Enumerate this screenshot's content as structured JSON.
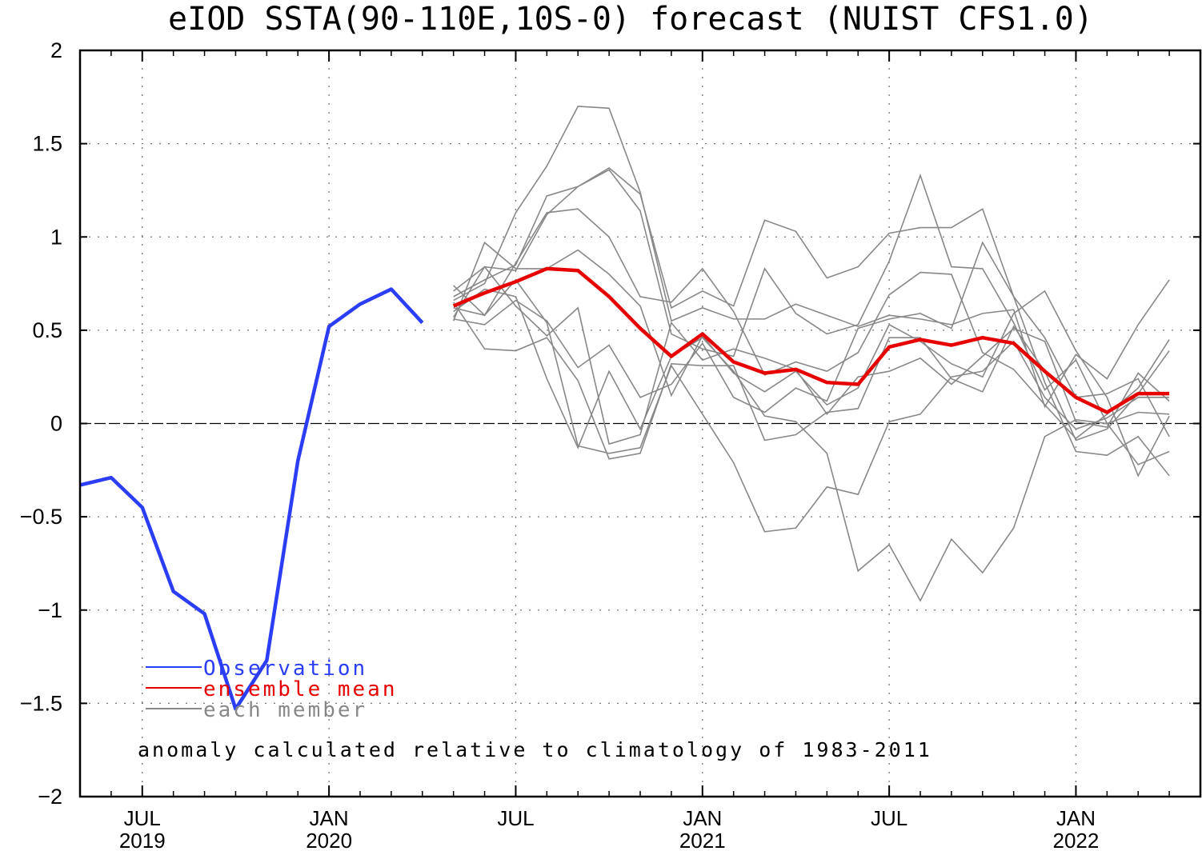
{
  "chart_data": {
    "type": "line",
    "title": "eIOD SSTA(90-110E,10S-0) forecast (NUIST CFS1.0)",
    "xlabel": "",
    "ylabel": "",
    "ylim": [
      -2,
      2
    ],
    "yticks": [
      "2",
      "1.5",
      "1",
      "0.5",
      "0",
      "-0.5",
      "-1",
      "-1.5",
      "-2"
    ],
    "xlim": [
      "2019-05",
      "2022-05"
    ],
    "xticks": [
      {
        "x": "2019-07",
        "month": "JUL",
        "year": "2019"
      },
      {
        "x": "2020-01",
        "month": "JAN",
        "year": "2020"
      },
      {
        "x": "2020-07",
        "month": "JUL",
        "year": ""
      },
      {
        "x": "2021-01",
        "month": "JAN",
        "year": "2021"
      },
      {
        "x": "2021-07",
        "month": "JUL",
        "year": ""
      },
      {
        "x": "2022-01",
        "month": "JAN",
        "year": "2022"
      }
    ],
    "grid": true,
    "zero_line": true,
    "legend": {
      "position": "bottom-left",
      "entries": [
        {
          "name": "Observation",
          "color": "#2b3df5"
        },
        {
          "name": "ensemble mean",
          "color": "#e60000"
        },
        {
          "name": "each member",
          "color": "#888888"
        }
      ]
    },
    "annotation": "anomaly calculated relative to climatology of 1983-2011",
    "series": [
      {
        "name": "Observation",
        "color": "#2b3df5",
        "x": [
          "2019-05",
          "2019-06",
          "2019-07",
          "2019-08",
          "2019-09",
          "2019-10",
          "2019-11",
          "2019-12",
          "2020-01",
          "2020-02",
          "2020-03",
          "2020-04"
        ],
        "values": [
          -0.33,
          -0.29,
          -0.45,
          -0.9,
          -1.02,
          -1.53,
          -1.27,
          -0.2,
          0.52,
          0.64,
          0.72,
          0.54
        ]
      },
      {
        "name": "ensemble mean",
        "color": "#e60000",
        "x": [
          "2020-05",
          "2020-06",
          "2020-07",
          "2020-08",
          "2020-09",
          "2020-10",
          "2020-11",
          "2020-12",
          "2021-01",
          "2021-02",
          "2021-03",
          "2021-04",
          "2021-05",
          "2021-06",
          "2021-07",
          "2021-08",
          "2021-09",
          "2021-10",
          "2021-11",
          "2021-12",
          "2022-01",
          "2022-02",
          "2022-03",
          "2022-04"
        ],
        "values": [
          0.63,
          0.7,
          0.76,
          0.83,
          0.82,
          0.68,
          0.51,
          0.36,
          0.48,
          0.33,
          0.27,
          0.29,
          0.22,
          0.21,
          0.41,
          0.45,
          0.42,
          0.46,
          0.43,
          0.28,
          0.14,
          0.06,
          0.16,
          0.16
        ]
      }
    ],
    "members": {
      "color": "#888888",
      "x": [
        "2020-05",
        "2020-06",
        "2020-07",
        "2020-08",
        "2020-09",
        "2020-10",
        "2020-11",
        "2020-12",
        "2021-01",
        "2021-02",
        "2021-03",
        "2021-04",
        "2021-05",
        "2021-06",
        "2021-07",
        "2021-08",
        "2021-09",
        "2021-10",
        "2021-11",
        "2021-12",
        "2022-01",
        "2022-02",
        "2022-03",
        "2022-04"
      ],
      "lines": [
        [
          0.66,
          0.75,
          1.13,
          1.38,
          1.7,
          1.69,
          1.24,
          0.55,
          0.62,
          0.56,
          0.56,
          0.64,
          0.58,
          0.52,
          0.58,
          0.56,
          0.53,
          0.59,
          0.61,
          0.09,
          0.37,
          0.24,
          0.53,
          0.77
        ],
        [
          0.68,
          0.77,
          0.85,
          1.22,
          1.27,
          1.37,
          1.23,
          0.62,
          0.71,
          0.63,
          1.09,
          1.03,
          0.78,
          0.84,
          1.02,
          1.05,
          1.05,
          1.15,
          0.68,
          0.46,
          0.14,
          0.16,
          0.24,
          -0.07
        ],
        [
          0.57,
          0.84,
          0.82,
          1.12,
          1.27,
          1.36,
          1.14,
          0.48,
          0.4,
          0.36,
          0.83,
          0.59,
          0.48,
          0.53,
          0.87,
          1.33,
          0.84,
          0.83,
          0.54,
          0.18,
          0.34,
          0.0,
          -0.22,
          -0.15
        ],
        [
          0.74,
          0.58,
          0.86,
          1.13,
          1.15,
          1.0,
          0.68,
          0.65,
          0.83,
          0.6,
          0.26,
          0.33,
          0.28,
          0.38,
          0.69,
          0.81,
          0.8,
          0.38,
          0.29,
          0.1,
          -0.08,
          0.05,
          0.19,
          0.45
        ],
        [
          0.55,
          0.97,
          0.83,
          0.83,
          0.93,
          0.8,
          0.63,
          0.15,
          0.47,
          0.27,
          0.17,
          0.28,
          0.1,
          0.19,
          0.53,
          0.44,
          0.32,
          0.25,
          0.59,
          0.71,
          0.39,
          0.14,
          -0.28,
          0.04
        ],
        [
          0.56,
          0.53,
          0.66,
          0.55,
          0.3,
          0.42,
          0.14,
          0.21,
          0.43,
          0.14,
          0.06,
          0.19,
          0.12,
          0.51,
          0.56,
          0.59,
          0.51,
          0.97,
          0.68,
          0.22,
          -0.15,
          -0.17,
          -0.07,
          -0.28
        ],
        [
          0.71,
          0.84,
          0.63,
          0.47,
          0.62,
          -0.11,
          -0.06,
          0.54,
          0.34,
          0.4,
          0.35,
          0.29,
          0.05,
          0.25,
          0.28,
          0.35,
          0.21,
          0.36,
          0.51,
          0.44,
          0.01,
          -0.02,
          0.27,
          0.12
        ],
        [
          0.65,
          0.4,
          0.39,
          0.46,
          0.23,
          -0.19,
          -0.16,
          0.32,
          0.31,
          0.31,
          -0.09,
          -0.06,
          0.06,
          0.08,
          0.46,
          0.46,
          0.24,
          0.17,
          0.52,
          0.28,
          -0.09,
          -0.03,
          0.16,
          0.39
        ],
        [
          0.62,
          0.58,
          0.77,
          0.54,
          -0.12,
          -0.16,
          -0.13,
          0.31,
          0.05,
          -0.21,
          -0.58,
          -0.56,
          -0.34,
          -0.38,
          0.01,
          0.05,
          0.25,
          0.28,
          0.44,
          0.14,
          -0.03,
          0.03,
          0.14,
          0.14
        ],
        [
          0.6,
          0.72,
          0.68,
          0.24,
          -0.13,
          0.28,
          -0.03,
          0.36,
          0.46,
          0.28,
          0.04,
          0.01,
          -0.16,
          -0.79,
          -0.65,
          -0.95,
          -0.62,
          -0.8,
          -0.56,
          -0.07,
          0.02,
          0.0,
          0.06,
          0.05
        ]
      ]
    }
  }
}
